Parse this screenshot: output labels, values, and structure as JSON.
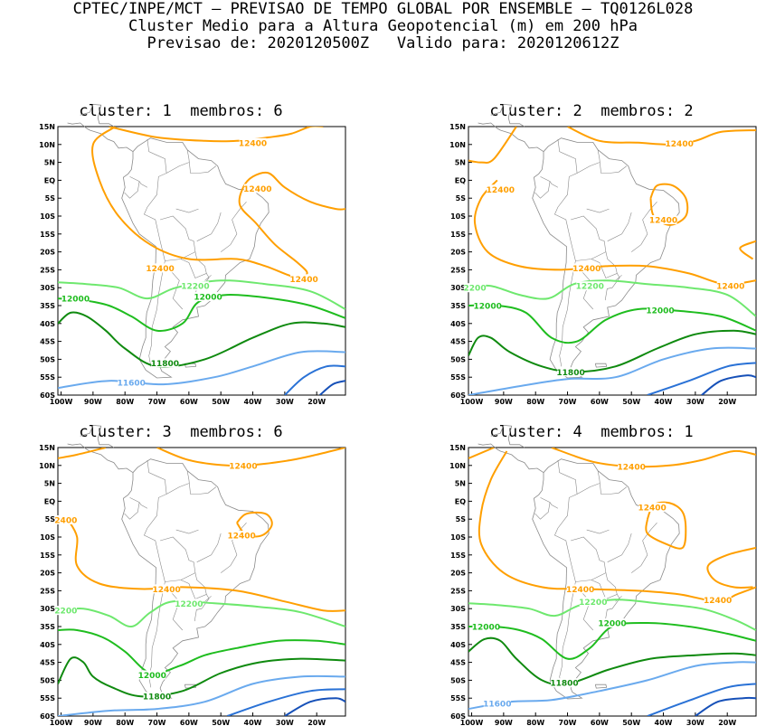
{
  "header": {
    "line1": "CPTEC/INPE/MCT – PREVISAO DE TEMPO GLOBAL POR ENSEMBLE – TQ0126L028",
    "line2": "Cluster Medio para a Altura Geopotencial (m) em 200 hPa",
    "line3": "Previsao de: 2020120500Z   Valido para: 2020120612Z"
  },
  "axes": {
    "lat_ticks": [
      "15N",
      "10N",
      "5N",
      "EQ",
      "5S",
      "10S",
      "15S",
      "20S",
      "25S",
      "30S",
      "35S",
      "40S",
      "45S",
      "50S",
      "55S",
      "60S"
    ],
    "lon_ticks": [
      "100W",
      "90W",
      "80W",
      "70W",
      "60W",
      "50W",
      "40W",
      "30W",
      "20W"
    ]
  },
  "colors": {
    "c12400": "#ff9f00",
    "c12200": "#6ee86e",
    "c12000": "#1fbd1f",
    "c11800": "#0f8a0f",
    "c11600": "#6aaaee",
    "c11400": "#2a72d6",
    "c11200": "#1650b8",
    "coast": "#8a8a8a"
  },
  "panels": [
    {
      "title": "cluster: 1  membros: 6",
      "labels": [
        {
          "text": "12400",
          "lon": -40,
          "lat": 10.5,
          "c": "c12400"
        },
        {
          "text": "12400",
          "lon": -38.5,
          "lat": -2.3,
          "c": "c12400"
        },
        {
          "text": "12400",
          "lon": -69,
          "lat": -24.5,
          "c": "c12400"
        },
        {
          "text": "12400",
          "lon": -24,
          "lat": -27.5,
          "c": "c12400"
        },
        {
          "text": "12200",
          "lon": -58,
          "lat": -29.5,
          "c": "c12200"
        },
        {
          "text": "12000",
          "lon": -95.5,
          "lat": -33,
          "c": "c12000"
        },
        {
          "text": "12000",
          "lon": -54,
          "lat": -32.5,
          "c": "c12000"
        },
        {
          "text": "11800",
          "lon": -67.5,
          "lat": -51,
          "c": "c11800"
        },
        {
          "text": "11600",
          "lon": -78,
          "lat": -56.5,
          "c": "c11600"
        }
      ]
    },
    {
      "title": "cluster: 2  membros: 2",
      "labels": [
        {
          "text": "12400",
          "lon": -35,
          "lat": 10.3,
          "c": "c12400"
        },
        {
          "text": "12400",
          "lon": -91,
          "lat": -2.5,
          "c": "c12400"
        },
        {
          "text": "12400",
          "lon": -40,
          "lat": -11,
          "c": "c12400"
        },
        {
          "text": "12400",
          "lon": -64,
          "lat": -24.5,
          "c": "c12400"
        },
        {
          "text": "12400",
          "lon": -19,
          "lat": -29.5,
          "c": "c12400"
        },
        {
          "text": "12200",
          "lon": -63,
          "lat": -29.5,
          "c": "c12200"
        },
        {
          "text": "2200",
          "lon": -99,
          "lat": -30,
          "c": "c12200"
        },
        {
          "text": "12000",
          "lon": -95,
          "lat": -35,
          "c": "c12000"
        },
        {
          "text": "12000",
          "lon": -41,
          "lat": -36.3,
          "c": "c12000"
        },
        {
          "text": "11800",
          "lon": -69,
          "lat": -53.5,
          "c": "c11800"
        }
      ]
    },
    {
      "title": "cluster: 3  membros: 6",
      "labels": [
        {
          "text": "12400",
          "lon": -43,
          "lat": 10,
          "c": "c12400"
        },
        {
          "text": "2400",
          "lon": -98.5,
          "lat": -5.2,
          "c": "c12400"
        },
        {
          "text": "12400",
          "lon": -43.5,
          "lat": -9.5,
          "c": "c12400"
        },
        {
          "text": "12400",
          "lon": -67,
          "lat": -24.5,
          "c": "c12400"
        },
        {
          "text": "12200",
          "lon": -60,
          "lat": -28.5,
          "c": "c12200"
        },
        {
          "text": "2200",
          "lon": -98.5,
          "lat": -30.5,
          "c": "c12200"
        },
        {
          "text": "12000",
          "lon": -71.5,
          "lat": -48.5,
          "c": "c12000"
        },
        {
          "text": "11800",
          "lon": -70,
          "lat": -54.5,
          "c": "c11800"
        }
      ]
    },
    {
      "title": "cluster: 4  membros: 1",
      "labels": [
        {
          "text": "12400",
          "lon": -50,
          "lat": 9.7,
          "c": "c12400"
        },
        {
          "text": "12400",
          "lon": -43.5,
          "lat": -1.7,
          "c": "c12400"
        },
        {
          "text": "12400",
          "lon": -66,
          "lat": -24.5,
          "c": "c12400"
        },
        {
          "text": "12400",
          "lon": -23,
          "lat": -27.5,
          "c": "c12400"
        },
        {
          "text": "12200",
          "lon": -62,
          "lat": -28,
          "c": "c12200"
        },
        {
          "text": "12000",
          "lon": -95.5,
          "lat": -35,
          "c": "c12000"
        },
        {
          "text": "12000",
          "lon": -56,
          "lat": -34,
          "c": "c12000"
        },
        {
          "text": "11800",
          "lon": -71,
          "lat": -50.7,
          "c": "c11800"
        },
        {
          "text": "11600",
          "lon": -92,
          "lat": -56.5,
          "c": "c11600"
        }
      ]
    }
  ]
}
